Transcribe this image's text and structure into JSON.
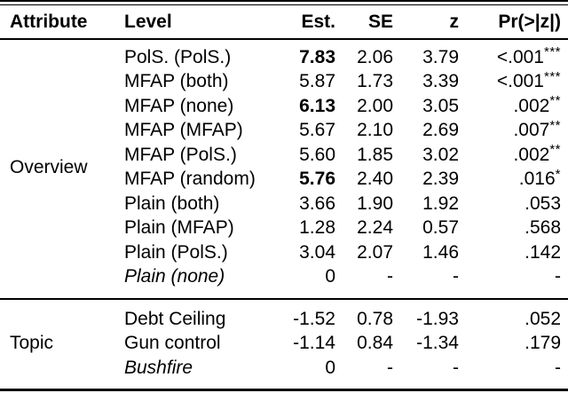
{
  "table": {
    "headers": {
      "attribute": "Attribute",
      "level": "Level",
      "est": "Est.",
      "se": "SE",
      "z": "z",
      "pr": "Pr(>|z|)"
    },
    "sections": [
      {
        "attribute": "Overview",
        "rows": [
          {
            "level": "PolS. (PolS.)",
            "italic": false,
            "est": "7.83",
            "est_bold": true,
            "se": "2.06",
            "z": "3.79",
            "pr": "<.001",
            "stars": "***"
          },
          {
            "level": "MFAP (both)",
            "italic": false,
            "est": "5.87",
            "est_bold": false,
            "se": "1.73",
            "z": "3.39",
            "pr": "<.001",
            "stars": "***"
          },
          {
            "level": "MFAP (none)",
            "italic": false,
            "est": "6.13",
            "est_bold": true,
            "se": "2.00",
            "z": "3.05",
            "pr": ".002",
            "stars": "**"
          },
          {
            "level": "MFAP (MFAP)",
            "italic": false,
            "est": "5.67",
            "est_bold": false,
            "se": "2.10",
            "z": "2.69",
            "pr": ".007",
            "stars": "**"
          },
          {
            "level": "MFAP (PolS.)",
            "italic": false,
            "est": "5.60",
            "est_bold": false,
            "se": "1.85",
            "z": "3.02",
            "pr": ".002",
            "stars": "**"
          },
          {
            "level": "MFAP (random)",
            "italic": false,
            "est": "5.76",
            "est_bold": true,
            "se": "2.40",
            "z": "2.39",
            "pr": ".016",
            "stars": "*"
          },
          {
            "level": "Plain (both)",
            "italic": false,
            "est": "3.66",
            "est_bold": false,
            "se": "1.90",
            "z": "1.92",
            "pr": ".053",
            "stars": ""
          },
          {
            "level": "Plain (MFAP)",
            "italic": false,
            "est": "1.28",
            "est_bold": false,
            "se": "2.24",
            "z": "0.57",
            "pr": ".568",
            "stars": ""
          },
          {
            "level": "Plain (PolS.)",
            "italic": false,
            "est": "3.04",
            "est_bold": false,
            "se": "2.07",
            "z": "1.46",
            "pr": ".142",
            "stars": ""
          },
          {
            "level": "Plain (none)",
            "italic": true,
            "est": "0",
            "est_bold": false,
            "se": "-",
            "z": "-",
            "pr": "-",
            "stars": ""
          }
        ]
      },
      {
        "attribute": "Topic",
        "rows": [
          {
            "level": "Debt Ceiling",
            "italic": false,
            "est": "-1.52",
            "est_bold": false,
            "se": "0.78",
            "z": "-1.93",
            "pr": ".052",
            "stars": ""
          },
          {
            "level": "Gun control",
            "italic": false,
            "est": "-1.14",
            "est_bold": false,
            "se": "0.84",
            "z": "-1.34",
            "pr": ".179",
            "stars": ""
          },
          {
            "level": "Bushfire",
            "italic": true,
            "est": "0",
            "est_bold": false,
            "se": "-",
            "z": "-",
            "pr": "-",
            "stars": ""
          }
        ]
      }
    ],
    "colors": {
      "text": "#000000",
      "background": "#ffffff",
      "rule": "#000000"
    }
  }
}
